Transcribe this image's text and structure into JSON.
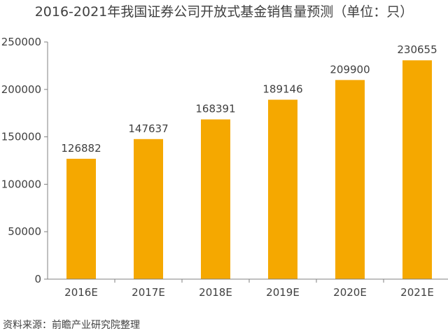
{
  "title": "2016-2021年我国证券公司开放式基金销售量预测（单位：只）",
  "source": "资料来源：前瞻产业研究院整理",
  "chart_data": {
    "type": "bar",
    "title": "2016-2021年我国证券公司开放式基金销售量预测（单位：只）",
    "categories": [
      "2016E",
      "2017E",
      "2018E",
      "2019E",
      "2020E",
      "2021E"
    ],
    "values": [
      126882,
      147637,
      168391,
      189146,
      209900,
      230655
    ],
    "ylim": [
      0,
      250000
    ],
    "yticks": [
      0,
      50000,
      100000,
      150000,
      200000,
      250000
    ],
    "xlabel": "",
    "ylabel": "",
    "bar_color": "#F5A800",
    "axis_color": "#808080",
    "grid": false,
    "legend": false
  }
}
